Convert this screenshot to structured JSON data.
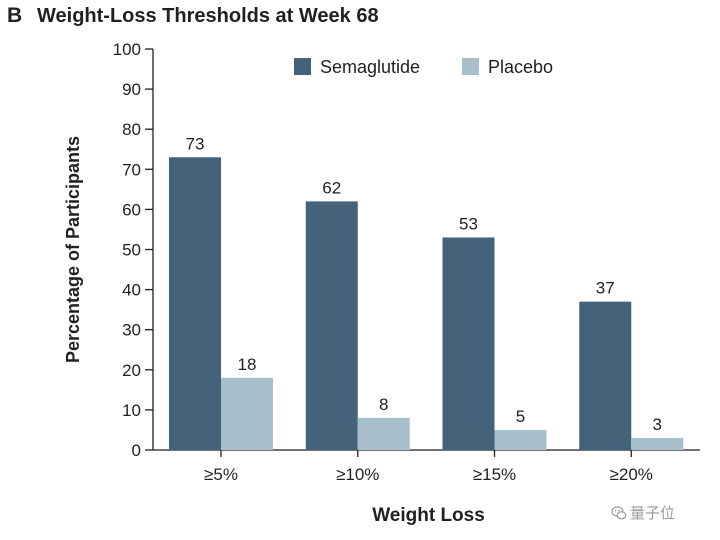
{
  "figure": {
    "panel_label": "B",
    "title": "Weight-Loss Thresholds at Week 68",
    "watermark_text": "量子位",
    "watermark_icon": "wechat-icon"
  },
  "chart_data": {
    "type": "bar",
    "title": "Weight-Loss Thresholds at Week 68",
    "xlabel": "Weight Loss",
    "ylabel": "Percentage of Participants",
    "ylim": [
      0,
      100
    ],
    "yticks": [
      0,
      10,
      20,
      30,
      40,
      50,
      60,
      70,
      80,
      90,
      100
    ],
    "categories": [
      "≥5%",
      "≥10%",
      "≥15%",
      "≥20%"
    ],
    "series": [
      {
        "name": "Semaglutide",
        "color": "#44637b",
        "values": [
          73,
          62,
          53,
          37
        ]
      },
      {
        "name": "Placebo",
        "color": "#a7bfcb",
        "values": [
          18,
          8,
          5,
          3
        ]
      }
    ],
    "data_labels": true,
    "legend_position": "top-right",
    "grid": false
  }
}
